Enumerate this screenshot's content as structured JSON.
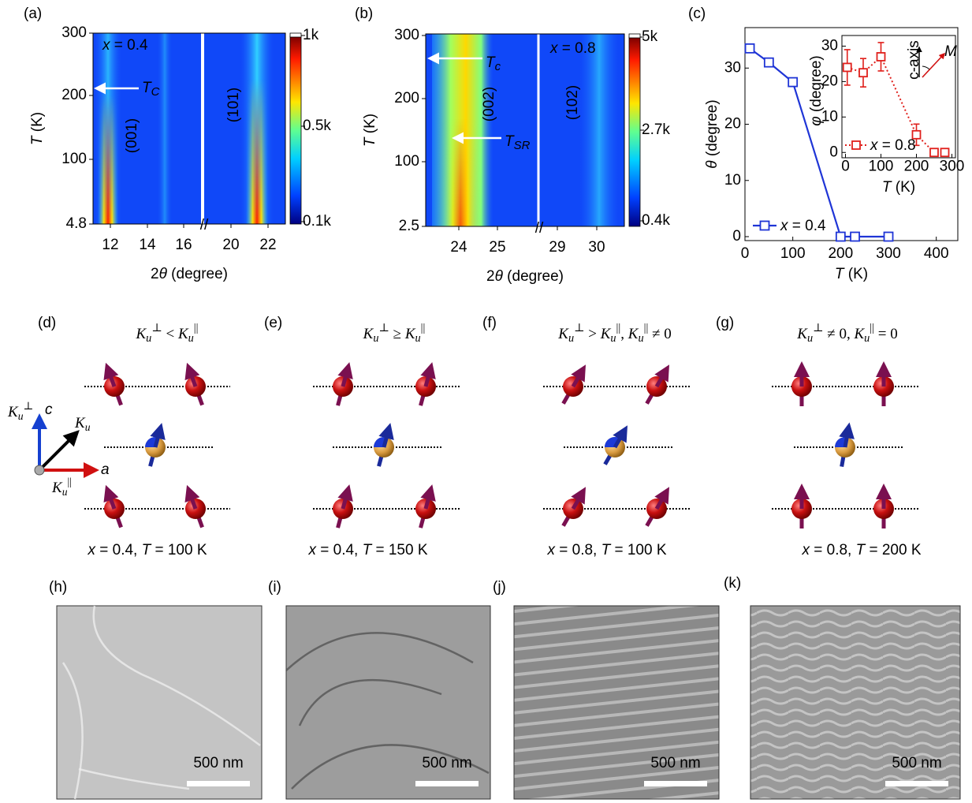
{
  "panels": {
    "a": {
      "label": "(a)",
      "annotation": [
        {
          "i": "x"
        },
        " = 0.4"
      ],
      "tc": {
        "base": "T",
        "sub": "C"
      },
      "peaks": [
        "(001)",
        "(101)"
      ],
      "yaxis": [
        {
          "i": "T"
        },
        " (K)"
      ],
      "xaxis": [
        "2",
        {
          "i": "θ"
        },
        " (degree)"
      ],
      "yticks": [
        "300",
        "200",
        "100",
        "4.8"
      ],
      "xticks": [
        "12",
        "14",
        "16",
        "20",
        "22"
      ],
      "colorbar": [
        "1k",
        "0.5k",
        "0.1k"
      ]
    },
    "b": {
      "label": "(b)",
      "annotation": [
        {
          "i": "x"
        },
        " = 0.8"
      ],
      "tc": {
        "base": "T",
        "sub": "c"
      },
      "tsr": {
        "base": "T",
        "sub": "SR"
      },
      "peaks": [
        "(002)",
        "(102)"
      ],
      "yaxis": [
        {
          "i": "T"
        },
        " (K)"
      ],
      "xaxis": [
        "2",
        {
          "i": "θ"
        },
        " (degree)"
      ],
      "yticks": [
        "300",
        "200",
        "100",
        "2.5"
      ],
      "xticks": [
        "24",
        "25",
        "29",
        "30"
      ],
      "colorbar": [
        "5k",
        "2.7k",
        "0.4k"
      ]
    },
    "c": {
      "label": "(c)",
      "yaxis": [
        {
          "i": "θ"
        },
        " (degree)"
      ],
      "xaxis": [
        {
          "i": "T"
        },
        " (K)"
      ],
      "xlim": [
        0,
        445
      ],
      "ylim": [
        -0.7,
        37.2
      ],
      "xticks": [
        0,
        100,
        200,
        300,
        400
      ],
      "yticks": [
        0,
        10,
        20,
        30
      ],
      "series": {
        "name": [
          {
            "i": "x"
          },
          " = 0.4"
        ],
        "color": "#1f35d6",
        "x": [
          10,
          50,
          100,
          200,
          230,
          300
        ],
        "values": [
          33.5,
          31,
          27.5,
          0,
          0,
          0
        ]
      },
      "inset": {
        "xlim": [
          -10,
          310
        ],
        "ylim": [
          -1.5,
          33
        ],
        "xticks": [
          0,
          100,
          200,
          300
        ],
        "yticks": [
          0,
          10,
          20,
          30
        ],
        "yaxis": [
          {
            "i": "φ"
          },
          " (degree)"
        ],
        "xaxis": [
          {
            "i": "T"
          },
          " (K)"
        ],
        "axis_label": "c-axis",
        "vector": "M",
        "series": {
          "name": [
            {
              "i": "x"
            },
            " = 0.8"
          ],
          "color": "#e0201c",
          "x": [
            5,
            50,
            100,
            200,
            250,
            280
          ],
          "values": [
            24,
            22.5,
            27,
            5,
            0,
            0
          ],
          "errors": [
            5,
            4,
            4,
            3,
            0,
            0
          ]
        }
      }
    },
    "d": {
      "label": "(d)",
      "condition": [
        {
          "base": "K",
          "sub": "u",
          "sup": "⊥"
        },
        " < ",
        {
          "base": "K",
          "sub": "u",
          "sup": "||"
        }
      ],
      "caption": [
        {
          "i": "x"
        },
        " = 0.4, ",
        {
          "i": "T"
        },
        " = 100 K"
      ],
      "axes": {
        "c": "c",
        "a": "a",
        "ku": {
          "base": "K",
          "sub": "u"
        },
        "kperp": {
          "base": "K",
          "sub": "u",
          "sup": "⊥"
        },
        "kpar": {
          "base": "K",
          "sub": "u",
          "sup": "||"
        }
      }
    },
    "e": {
      "label": "(e)",
      "condition": [
        {
          "base": "K",
          "sub": "u",
          "sup": "⊥"
        },
        " ≥ ",
        {
          "base": "K",
          "sub": "u",
          "sup": "||"
        }
      ],
      "caption": [
        {
          "i": "x"
        },
        " = 0.4, ",
        {
          "i": "T"
        },
        " = 150 K"
      ]
    },
    "f": {
      "label": "(f)",
      "condition": [
        {
          "base": "K",
          "sub": "u",
          "sup": "⊥"
        },
        " > ",
        {
          "base": "K",
          "sub": "u",
          "sup": "||"
        },
        ", ",
        {
          "base": "K",
          "sub": "u",
          "sup": "||"
        },
        " ≠ 0"
      ],
      "caption": [
        {
          "i": "x"
        },
        " = 0.8, ",
        {
          "i": "T"
        },
        " = 100 K"
      ]
    },
    "g": {
      "label": "(g)",
      "condition": [
        {
          "base": "K",
          "sub": "u",
          "sup": "⊥"
        },
        " ≠ 0, ",
        {
          "base": "K",
          "sub": "u",
          "sup": "||"
        },
        " = 0"
      ],
      "caption": [
        {
          "i": "x"
        },
        " = 0.8, ",
        {
          "i": "T"
        },
        " = 200 K"
      ]
    },
    "h": {
      "label": "(h)",
      "scale": "500 nm"
    },
    "i": {
      "label": "(i)",
      "scale": "500 nm"
    },
    "j": {
      "label": "(j)",
      "scale": "500 nm"
    },
    "k": {
      "label": "(k)",
      "scale": "500 nm"
    }
  }
}
